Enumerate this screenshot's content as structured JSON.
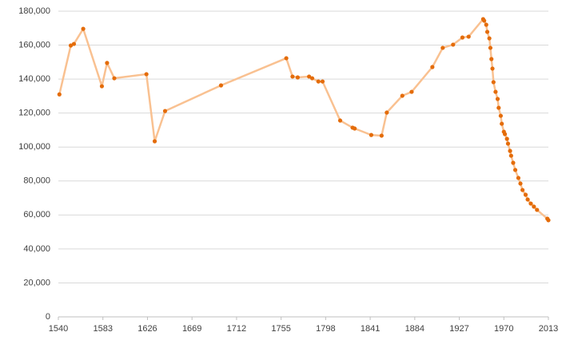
{
  "chart_data": {
    "type": "line",
    "x": [
      1541,
      1552,
      1555,
      1564,
      1582,
      1587,
      1594,
      1625,
      1633,
      1643,
      1697,
      1760,
      1766,
      1771,
      1782,
      1785,
      1791,
      1795,
      1812,
      1824,
      1826,
      1842,
      1852,
      1857,
      1872,
      1881,
      1901,
      1911,
      1921,
      1930,
      1936,
      1950,
      1951,
      1953,
      1954,
      1956,
      1957,
      1958,
      1959,
      1960,
      1962,
      1964,
      1965,
      1967,
      1968,
      1970,
      1971,
      1973,
      1974,
      1976,
      1977,
      1979,
      1981,
      1984,
      1986,
      1988,
      1991,
      1993,
      1996,
      1999,
      2002,
      2012,
      2013
    ],
    "values": [
      131000,
      159800,
      160700,
      169600,
      135800,
      149500,
      140500,
      142900,
      103400,
      121200,
      136300,
      152300,
      141500,
      141000,
      141500,
      140500,
      138600,
      138600,
      115600,
      111400,
      110900,
      107100,
      106700,
      120300,
      130200,
      132500,
      147100,
      158400,
      160300,
      164500,
      165000,
      175300,
      174400,
      172000,
      167800,
      164000,
      158400,
      151800,
      146200,
      138200,
      132500,
      128300,
      123100,
      118400,
      113700,
      109000,
      107600,
      104800,
      102000,
      97700,
      94900,
      90700,
      86500,
      81800,
      78500,
      74700,
      71900,
      69100,
      66700,
      64900,
      63000,
      57800,
      56900
    ],
    "color": "#e46c0a",
    "line_color": "#f9c191",
    "xlim": [
      1540,
      2013
    ],
    "xticks": [
      1540,
      1583,
      1626,
      1669,
      1712,
      1755,
      1798,
      1841,
      1884,
      1927,
      1970,
      2013
    ],
    "ylim": [
      0,
      180000
    ],
    "yticks": [
      0,
      {
        "value": 20000,
        "label": "20,000"
      },
      {
        "value": 40000,
        "label": "40,000"
      },
      {
        "value": 60000,
        "label": "60,000"
      },
      {
        "value": 80000,
        "label": "80,000"
      },
      {
        "value": 100000,
        "label": "100,000"
      },
      {
        "value": 120000,
        "label": "120,000"
      },
      {
        "value": 140000,
        "label": "140,000"
      },
      {
        "value": 160000,
        "label": "160,000"
      },
      {
        "value": 180000,
        "label": "180,000"
      }
    ],
    "grid": true
  }
}
